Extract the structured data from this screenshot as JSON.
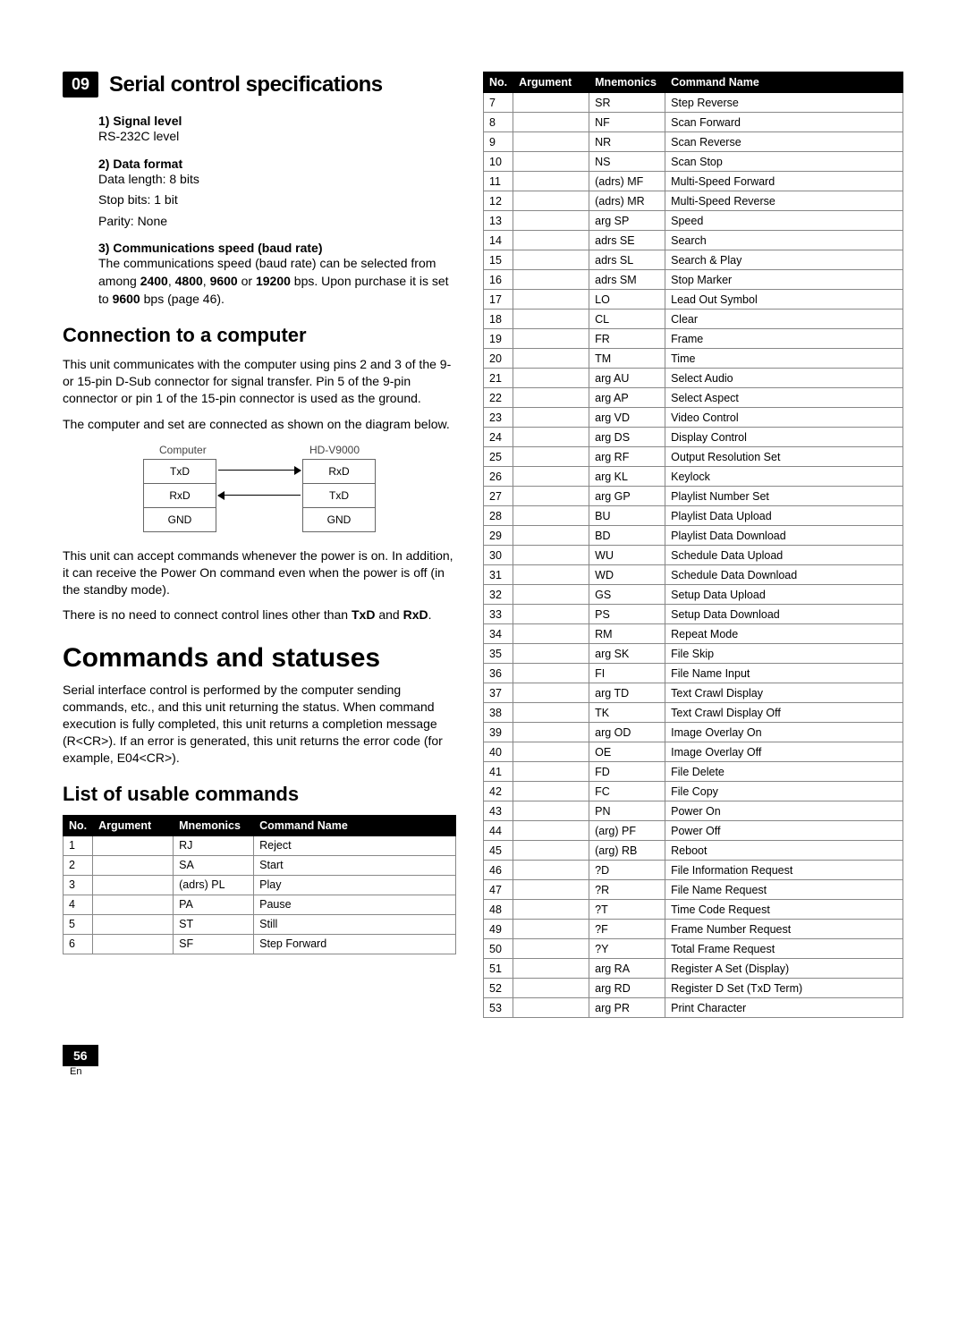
{
  "chapter": {
    "num": "09",
    "title": "Serial control specifications"
  },
  "specs": {
    "signal_head": "1) Signal level",
    "signal_text": "RS-232C level",
    "data_head": "2) Data format",
    "data_text1": "Data length: 8 bits",
    "data_text2": "Stop bits: 1 bit",
    "data_text3": "Parity: None",
    "comm_head": "3) Communications speed (baud rate)",
    "comm_text_a": "The communications speed (baud rate) can be selected from among ",
    "comm_b1": "2400",
    "comm_sep1": ", ",
    "comm_b2": "4800",
    "comm_sep2": ", ",
    "comm_b3": "9600",
    "comm_sep3": " or ",
    "comm_b4": "19200",
    "comm_text_b": " bps. Upon purchase it is set to ",
    "comm_b5": "9600",
    "comm_text_c": " bps (page 46)."
  },
  "connection": {
    "heading": "Connection to a computer",
    "p1": "This unit communicates with the computer using pins 2 and 3 of the 9- or 15-pin D-Sub connector for signal transfer. Pin 5 of the 9-pin connector or pin 1 of the 15-pin connector is used as the ground.",
    "p2": "The computer and set are connected as shown on the diagram below.",
    "diag_left_label": "Computer",
    "diag_right_label": "HD-V9000",
    "diag_left_rows": [
      "TxD",
      "RxD",
      "GND"
    ],
    "diag_right_rows": [
      "RxD",
      "TxD",
      "GND"
    ],
    "p3": "This unit can accept commands whenever the power is on. In addition, it can receive the Power On command even when the power is off (in the standby mode).",
    "p4_a": "There is no need to connect control lines other than ",
    "p4_b1": "TxD",
    "p4_mid": " and ",
    "p4_b2": "RxD",
    "p4_end": "."
  },
  "commands": {
    "heading": "Commands and statuses",
    "p1": "Serial interface control is performed by the computer sending commands, etc., and this unit returning the status. When command execution is fully completed, this unit returns a completion message (R<CR>). If an error is generated, this unit returns the error code (for example, E04<CR>).",
    "list_heading": "List of usable commands",
    "table_head": {
      "no": "No.",
      "arg": "Argument",
      "mn": "Mnemonics",
      "name": "Command Name"
    },
    "left_rows": [
      {
        "no": "1",
        "arg": "",
        "mn": "RJ",
        "name": "Reject"
      },
      {
        "no": "2",
        "arg": "",
        "mn": "SA",
        "name": "Start"
      },
      {
        "no": "3",
        "arg": "",
        "mn": "(adrs) PL",
        "name": "Play"
      },
      {
        "no": "4",
        "arg": "",
        "mn": "PA",
        "name": "Pause"
      },
      {
        "no": "5",
        "arg": "",
        "mn": "ST",
        "name": "Still"
      },
      {
        "no": "6",
        "arg": "",
        "mn": "SF",
        "name": "Step Forward"
      }
    ],
    "right_rows": [
      {
        "no": "7",
        "arg": "",
        "mn": "SR",
        "name": "Step Reverse"
      },
      {
        "no": "8",
        "arg": "",
        "mn": "NF",
        "name": "Scan Forward"
      },
      {
        "no": "9",
        "arg": "",
        "mn": "NR",
        "name": "Scan Reverse"
      },
      {
        "no": "10",
        "arg": "",
        "mn": "NS",
        "name": "Scan Stop"
      },
      {
        "no": "11",
        "arg": "",
        "mn": "(adrs) MF",
        "name": "Multi-Speed Forward"
      },
      {
        "no": "12",
        "arg": "",
        "mn": "(adrs) MR",
        "name": "Multi-Speed Reverse"
      },
      {
        "no": "13",
        "arg": "",
        "mn": "arg SP",
        "name": "Speed"
      },
      {
        "no": "14",
        "arg": "",
        "mn": "adrs SE",
        "name": "Search"
      },
      {
        "no": "15",
        "arg": "",
        "mn": "adrs SL",
        "name": "Search & Play"
      },
      {
        "no": "16",
        "arg": "",
        "mn": "adrs SM",
        "name": "Stop Marker"
      },
      {
        "no": "17",
        "arg": "",
        "mn": "LO",
        "name": "Lead Out Symbol"
      },
      {
        "no": "18",
        "arg": "",
        "mn": "CL",
        "name": "Clear"
      },
      {
        "no": "19",
        "arg": "",
        "mn": "FR",
        "name": "Frame"
      },
      {
        "no": "20",
        "arg": "",
        "mn": "TM",
        "name": "Time"
      },
      {
        "no": "21",
        "arg": "",
        "mn": "arg AU",
        "name": "Select Audio"
      },
      {
        "no": "22",
        "arg": "",
        "mn": "arg AP",
        "name": "Select Aspect"
      },
      {
        "no": "23",
        "arg": "",
        "mn": "arg VD",
        "name": "Video Control"
      },
      {
        "no": "24",
        "arg": "",
        "mn": "arg DS",
        "name": "Display Control"
      },
      {
        "no": "25",
        "arg": "",
        "mn": "arg RF",
        "name": "Output Resolution Set"
      },
      {
        "no": "26",
        "arg": "",
        "mn": "arg KL",
        "name": "Keylock"
      },
      {
        "no": "27",
        "arg": "",
        "mn": "arg GP",
        "name": "Playlist Number Set"
      },
      {
        "no": "28",
        "arg": "",
        "mn": "BU",
        "name": "Playlist Data Upload"
      },
      {
        "no": "29",
        "arg": "",
        "mn": "BD",
        "name": "Playlist Data Download"
      },
      {
        "no": "30",
        "arg": "",
        "mn": "WU",
        "name": "Schedule Data Upload"
      },
      {
        "no": "31",
        "arg": "",
        "mn": "WD",
        "name": "Schedule Data Download"
      },
      {
        "no": "32",
        "arg": "",
        "mn": "GS",
        "name": "Setup Data Upload"
      },
      {
        "no": "33",
        "arg": "",
        "mn": "PS",
        "name": "Setup Data Download"
      },
      {
        "no": "34",
        "arg": "",
        "mn": "RM",
        "name": "Repeat Mode"
      },
      {
        "no": "35",
        "arg": "",
        "mn": "arg SK",
        "name": "File Skip"
      },
      {
        "no": "36",
        "arg": "",
        "mn": "FI",
        "name": "File Name Input"
      },
      {
        "no": "37",
        "arg": "",
        "mn": "arg TD",
        "name": "Text Crawl Display"
      },
      {
        "no": "38",
        "arg": "",
        "mn": "TK",
        "name": "Text Crawl Display Off"
      },
      {
        "no": "39",
        "arg": "",
        "mn": "arg OD",
        "name": "Image Overlay On"
      },
      {
        "no": "40",
        "arg": "",
        "mn": "OE",
        "name": "Image Overlay Off"
      },
      {
        "no": "41",
        "arg": "",
        "mn": "FD",
        "name": "File Delete"
      },
      {
        "no": "42",
        "arg": "",
        "mn": "FC",
        "name": "File Copy"
      },
      {
        "no": "43",
        "arg": "",
        "mn": "PN",
        "name": "Power On"
      },
      {
        "no": "44",
        "arg": "",
        "mn": "(arg) PF",
        "name": "Power Off"
      },
      {
        "no": "45",
        "arg": "",
        "mn": "(arg) RB",
        "name": "Reboot"
      },
      {
        "no": "46",
        "arg": "",
        "mn": "?D",
        "name": "File Information Request"
      },
      {
        "no": "47",
        "arg": "",
        "mn": "?R",
        "name": "File Name Request"
      },
      {
        "no": "48",
        "arg": "",
        "mn": "?T",
        "name": "Time Code Request"
      },
      {
        "no": "49",
        "arg": "",
        "mn": "?F",
        "name": "Frame Number Request"
      },
      {
        "no": "50",
        "arg": "",
        "mn": "?Y",
        "name": "Total Frame Request"
      },
      {
        "no": "51",
        "arg": "",
        "mn": "arg RA",
        "name": "Register A Set (Display)"
      },
      {
        "no": "52",
        "arg": "",
        "mn": "arg RD",
        "name": "Register D Set (TxD Term)"
      },
      {
        "no": "53",
        "arg": "",
        "mn": "arg PR",
        "name": "Print Character"
      }
    ]
  },
  "footer": {
    "page": "56",
    "lang": "En"
  }
}
